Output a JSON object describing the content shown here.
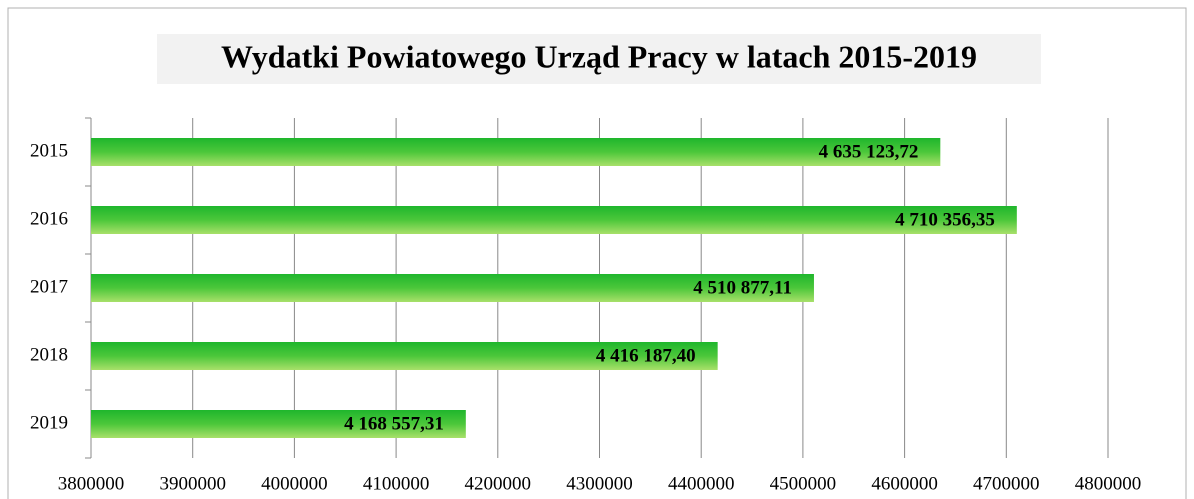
{
  "chart_data": {
    "type": "bar",
    "orientation": "horizontal",
    "title": "Wydatki Powiatowego Urząd Pracy w latach 2015-2019",
    "categories": [
      "2015",
      "2016",
      "2017",
      "2018",
      "2019"
    ],
    "values": [
      4635123.72,
      4710356.35,
      4510877.11,
      4416187.4,
      4168557.31
    ],
    "value_labels": [
      "4 635 123,72",
      "4 710 356,35",
      "4 510 877,11",
      "4 416 187,40",
      "4 168 557,31"
    ],
    "color": "#22b830",
    "xlim": [
      3800000,
      4800000
    ],
    "xticks": [
      3800000,
      3900000,
      4000000,
      4100000,
      4200000,
      4300000,
      4400000,
      4500000,
      4600000,
      4700000,
      4800000
    ],
    "grid": true
  }
}
